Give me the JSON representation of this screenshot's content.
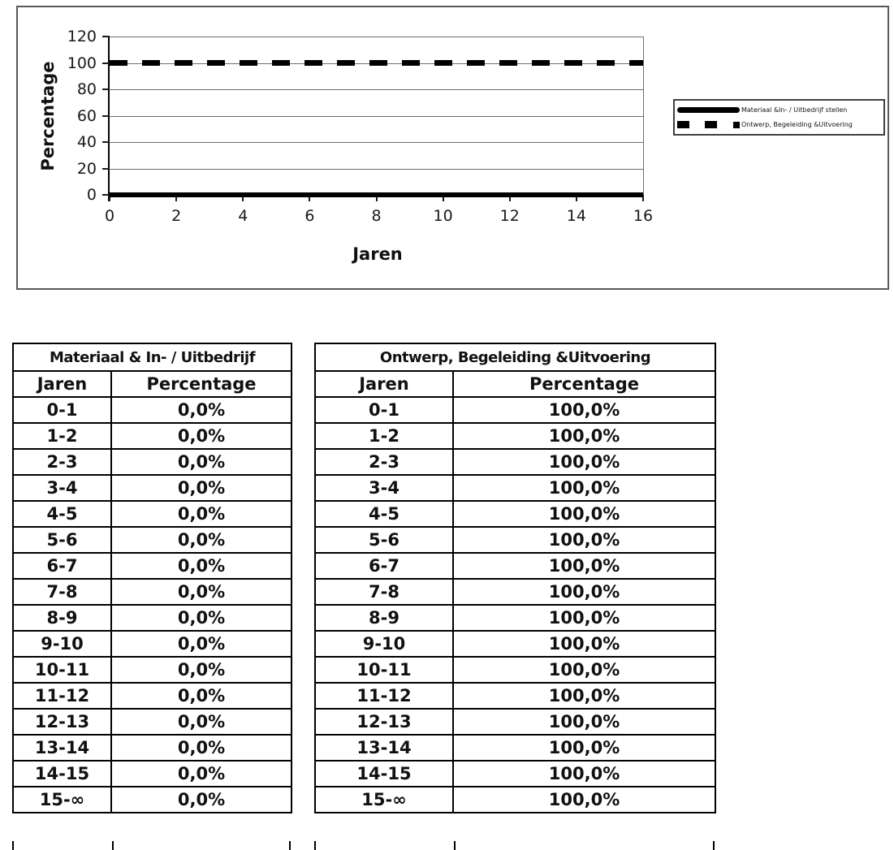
{
  "chart_data": {
    "type": "line",
    "title": "",
    "xlabel": "Jaren",
    "ylabel": "Percentage",
    "xlim": [
      0,
      16
    ],
    "ylim": [
      0,
      120
    ],
    "x_ticks": [
      0,
      2,
      4,
      6,
      8,
      10,
      12,
      14,
      16
    ],
    "y_ticks": [
      0,
      20,
      40,
      60,
      80,
      100,
      120
    ],
    "grid": true,
    "legend_position": "right",
    "series": [
      {
        "name": "Materiaal &In- / Uitbedrijf stellen",
        "line_style": "solid",
        "x": [
          0,
          16
        ],
        "y": [
          0,
          0
        ]
      },
      {
        "name": "Ontwerp, Begeleiding &Uitvoering",
        "line_style": "dashed",
        "x": [
          0,
          16
        ],
        "y": [
          100,
          100
        ]
      }
    ]
  },
  "tables": [
    {
      "title": "Materiaal & In- / Uitbedrijf",
      "columns": [
        "Jaren",
        "Percentage"
      ],
      "rows": [
        [
          "0-1",
          "0,0%"
        ],
        [
          "1-2",
          "0,0%"
        ],
        [
          "2-3",
          "0,0%"
        ],
        [
          "3-4",
          "0,0%"
        ],
        [
          "4-5",
          "0,0%"
        ],
        [
          "5-6",
          "0,0%"
        ],
        [
          "6-7",
          "0,0%"
        ],
        [
          "7-8",
          "0,0%"
        ],
        [
          "8-9",
          "0,0%"
        ],
        [
          "9-10",
          "0,0%"
        ],
        [
          "10-11",
          "0,0%"
        ],
        [
          "11-12",
          "0,0%"
        ],
        [
          "12-13",
          "0,0%"
        ],
        [
          "13-14",
          "0,0%"
        ],
        [
          "14-15",
          "0,0%"
        ],
        [
          "15-∞",
          "0,0%"
        ]
      ]
    },
    {
      "title": "Ontwerp, Begeleiding &Uitvoering",
      "columns": [
        "Jaren",
        "Percentage"
      ],
      "rows": [
        [
          "0-1",
          "100,0%"
        ],
        [
          "1-2",
          "100,0%"
        ],
        [
          "2-3",
          "100,0%"
        ],
        [
          "3-4",
          "100,0%"
        ],
        [
          "4-5",
          "100,0%"
        ],
        [
          "5-6",
          "100,0%"
        ],
        [
          "6-7",
          "100,0%"
        ],
        [
          "7-8",
          "100,0%"
        ],
        [
          "8-9",
          "100,0%"
        ],
        [
          "9-10",
          "100,0%"
        ],
        [
          "10-11",
          "100,0%"
        ],
        [
          "11-12",
          "100,0%"
        ],
        [
          "12-13",
          "100,0%"
        ],
        [
          "13-14",
          "100,0%"
        ],
        [
          "14-15",
          "100,0%"
        ],
        [
          "15-∞",
          "100,0%"
        ]
      ]
    }
  ]
}
